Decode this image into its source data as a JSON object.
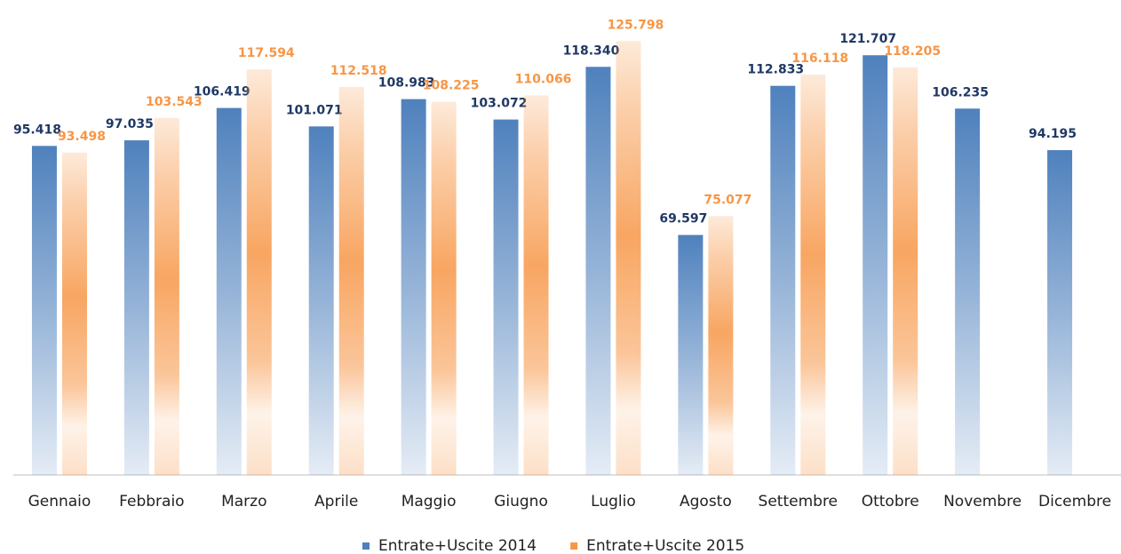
{
  "chart_data": {
    "type": "bar",
    "categories": [
      "Gennaio",
      "Febbraio",
      "Marzo",
      "Aprile",
      "Maggio",
      "Giugno",
      "Luglio",
      "Agosto",
      "Settembre",
      "Ottobre",
      "Novembre",
      "Dicembre"
    ],
    "series": [
      {
        "name": "Entrate+Uscite 2014",
        "color": "#4f81bd",
        "values": [
          95418,
          97035,
          106419,
          101071,
          108983,
          103072,
          118340,
          69597,
          112833,
          121707,
          106235,
          94195
        ],
        "value_labels": [
          "95.418",
          "97.035",
          "106.419",
          "101.071",
          "108.983",
          "103.072",
          "118.340",
          "69.597",
          "112.833",
          "121.707",
          "106.235",
          "94.195"
        ]
      },
      {
        "name": "Entrate+Uscite 2015",
        "color": "#f79646",
        "values": [
          93498,
          103543,
          117594,
          112518,
          108225,
          110066,
          125798,
          75077,
          116118,
          118205,
          null,
          null
        ],
        "value_labels": [
          "93.498",
          "103.543",
          "117.594",
          "112.518",
          "108.225",
          "110.066",
          "125.798",
          "75.077",
          "116.118",
          "118.205",
          null,
          null
        ]
      }
    ],
    "ylim": [
      0,
      130000
    ],
    "legend": "bottom"
  }
}
